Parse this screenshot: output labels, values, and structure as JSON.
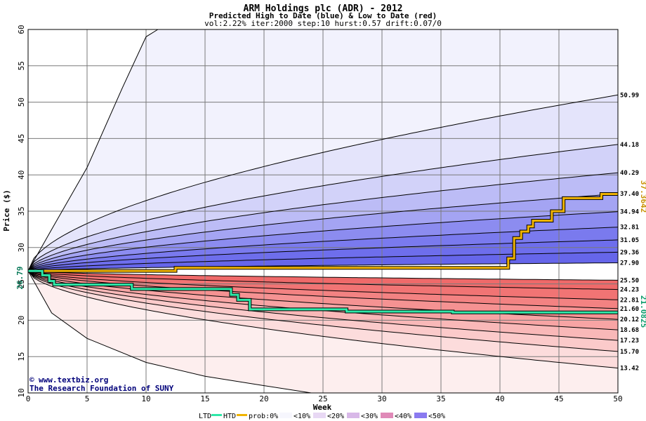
{
  "chart_data": {
    "type": "area",
    "title": "ARM Holdings plc (ADR) - 2012",
    "subtitle": "Predicted High to Date (blue) &  Low to Date (red)",
    "params": "vol:2.22% iter:2000 step:10 hurst:0.57 drift:0.07/0",
    "xlabel": "Week",
    "ylabel": "Price ($)",
    "xlim": [
      0,
      50
    ],
    "ylim": [
      10,
      60
    ],
    "x_ticks": [
      "0",
      "5",
      "10",
      "15",
      "20",
      "25",
      "30",
      "35",
      "40",
      "45",
      "50"
    ],
    "y_ticks": [
      "10",
      "15",
      "20",
      "25",
      "30",
      "35",
      "40",
      "45",
      "50",
      "55",
      "60"
    ],
    "grid": true,
    "start_price": 26.79,
    "start_label": "26.79",
    "high_marker": {
      "value": 37.3642,
      "label": "37.3642"
    },
    "low_marker": {
      "value": 21.0825,
      "label": "21.0825"
    },
    "high_percentile_ends": [
      {
        "label": "50.99",
        "value": 50.99
      },
      {
        "label": "44.18",
        "value": 44.18
      },
      {
        "label": "40.29",
        "value": 40.29
      },
      {
        "label": "37.40",
        "value": 37.4
      },
      {
        "label": "34.94",
        "value": 34.94
      },
      {
        "label": "32.81",
        "value": 32.81
      },
      {
        "label": "31.05",
        "value": 31.05
      },
      {
        "label": "29.36",
        "value": 29.36
      },
      {
        "label": "27.90",
        "value": 27.9
      }
    ],
    "low_percentile_ends": [
      {
        "label": "25.50",
        "value": 25.5
      },
      {
        "label": "24.23",
        "value": 24.23
      },
      {
        "label": "22.81",
        "value": 22.81
      },
      {
        "label": "21.60",
        "value": 21.6
      },
      {
        "label": "20.12",
        "value": 20.12
      },
      {
        "label": "18.68",
        "value": 18.68
      },
      {
        "label": "17.23",
        "value": 17.23
      },
      {
        "label": "15.70",
        "value": 15.7
      },
      {
        "label": "13.42",
        "value": 13.42
      }
    ],
    "outer_high_path": [
      [
        0,
        26.79
      ],
      [
        2,
        32.5
      ],
      [
        5,
        41
      ],
      [
        8,
        52
      ],
      [
        10,
        59
      ],
      [
        11,
        60
      ]
    ],
    "outer_low_path": [
      [
        0,
        26.79
      ],
      [
        2,
        21
      ],
      [
        5,
        17.5
      ],
      [
        10,
        14.2
      ],
      [
        15,
        12.3
      ],
      [
        20,
        11
      ],
      [
        24,
        10
      ]
    ],
    "htd_series": [
      [
        0,
        26.79
      ],
      [
        12.5,
        26.79
      ],
      [
        12.5,
        27.2
      ],
      [
        40.7,
        27.2
      ],
      [
        40.7,
        28.5
      ],
      [
        41.2,
        28.5
      ],
      [
        41.2,
        31.3
      ],
      [
        41.8,
        31.3
      ],
      [
        41.8,
        32.2
      ],
      [
        42.4,
        32.2
      ],
      [
        42.4,
        32.9
      ],
      [
        42.8,
        32.9
      ],
      [
        42.8,
        33.7
      ],
      [
        44.4,
        33.7
      ],
      [
        44.4,
        35.0
      ],
      [
        45.4,
        35.0
      ],
      [
        45.4,
        36.8
      ],
      [
        48.6,
        36.8
      ],
      [
        48.6,
        37.3642
      ],
      [
        50,
        37.3642
      ]
    ],
    "ltd_series": [
      [
        0,
        26.79
      ],
      [
        1.2,
        26.79
      ],
      [
        1.2,
        26.2
      ],
      [
        1.8,
        26.2
      ],
      [
        1.8,
        25.4
      ],
      [
        2.2,
        25.4
      ],
      [
        2.2,
        24.9
      ],
      [
        8.8,
        24.9
      ],
      [
        8.8,
        24.3
      ],
      [
        17.2,
        24.3
      ],
      [
        17.2,
        23.5
      ],
      [
        17.8,
        23.5
      ],
      [
        17.8,
        22.8
      ],
      [
        18.8,
        22.8
      ],
      [
        18.8,
        21.5
      ],
      [
        27,
        21.5
      ],
      [
        27,
        21.2
      ],
      [
        36,
        21.2
      ],
      [
        36,
        21.0825
      ],
      [
        50,
        21.0825
      ]
    ],
    "legend": {
      "ltd": "LTD",
      "htd": "HTD",
      "prob": "prob:0%",
      "bins": [
        "<10%",
        "<20%",
        "<30%",
        "<40%",
        "<50%"
      ]
    }
  },
  "colors": {
    "ltd": "#2ee8a8",
    "htd": "#f0b400",
    "blue_bands": [
      "#f4f4fd",
      "#e4e4fb",
      "#d2d2f9",
      "#bcbcf6",
      "#a4a4f3",
      "#8c8cf0",
      "#7a7aee",
      "#6e6eec",
      "#6666ea"
    ],
    "red_bands": [
      "#fdeeee",
      "#fcdcdc",
      "#fbcaca",
      "#f9b8b8",
      "#f7a4a4",
      "#f59292",
      "#f38282",
      "#f17474",
      "#ef6a6a"
    ],
    "legend_swatches": [
      "#ffffff",
      "#f6f6fd",
      "#e8d8f4",
      "#d8b8e8",
      "#e08ab8",
      "#8a7af0"
    ]
  },
  "credits": {
    "copyright": "www.textbiz.org",
    "org": "The Research Foundation of SUNY"
  }
}
